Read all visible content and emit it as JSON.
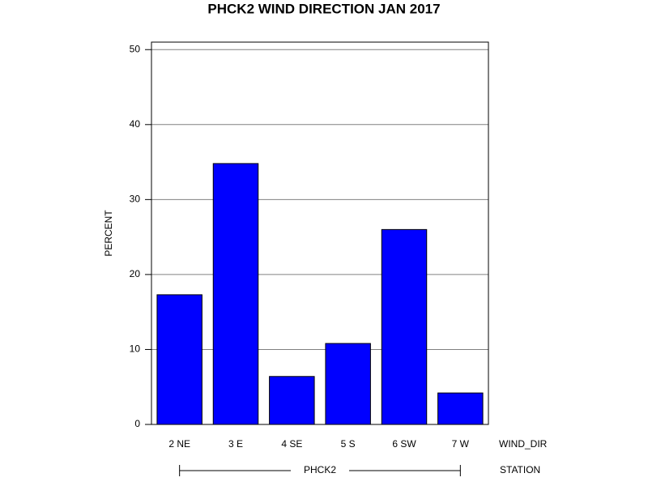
{
  "chart_data": {
    "type": "bar",
    "title": "PHCK2 WIND DIRECTION JAN 2017",
    "y_label": "PERCENT",
    "x_label": "WIND_DIR",
    "group_label": "STATION",
    "group": "PHCK2",
    "categories": [
      "2 NE",
      "3 E",
      "4 SE",
      "5 S",
      "6 SW",
      "7 W"
    ],
    "values": [
      17.3,
      34.8,
      6.4,
      10.8,
      26.0,
      4.2
    ],
    "color": "#0000ff",
    "ylim": [
      0,
      51
    ],
    "yticks": [
      0,
      10,
      20,
      30,
      40,
      50
    ],
    "grid": true
  }
}
